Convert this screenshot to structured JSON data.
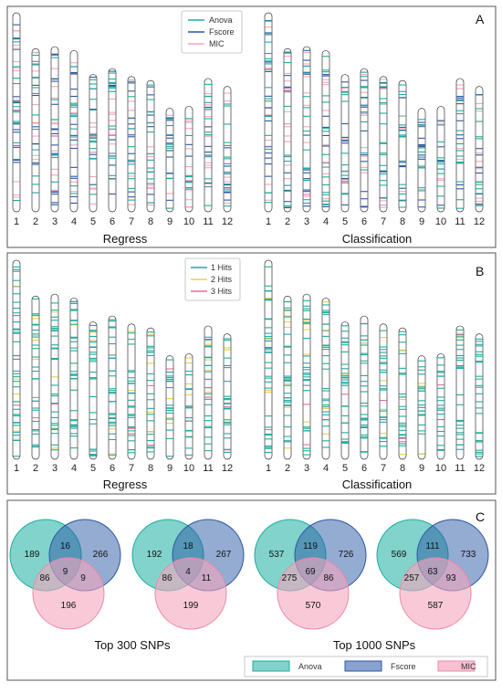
{
  "panel_a": {
    "letter": "A",
    "legend": [
      {
        "label": "Anova",
        "color": "#1aaea0"
      },
      {
        "label": "Fscore",
        "color": "#2a57a6"
      },
      {
        "label": "MIC",
        "color": "#f4a6bd"
      }
    ],
    "group_labels": [
      "Regress",
      "Classification"
    ],
    "chromosomes": [
      "1",
      "2",
      "3",
      "4",
      "5",
      "6",
      "7",
      "8",
      "9",
      "10",
      "11",
      "12"
    ]
  },
  "panel_b": {
    "letter": "B",
    "legend": [
      {
        "label": "1 Hits",
        "color": "#1aaea0"
      },
      {
        "label": "2 Hits",
        "color": "#e8d04a"
      },
      {
        "label": "3 Hits",
        "color": "#ef6a96"
      }
    ],
    "group_labels": [
      "Regress",
      "Classification"
    ],
    "chromosomes": [
      "1",
      "2",
      "3",
      "4",
      "5",
      "6",
      "7",
      "8",
      "9",
      "10",
      "11",
      "12"
    ]
  },
  "panel_c": {
    "letter": "C",
    "captions": [
      "Top 300 SNPs",
      "Top 1000 SNPs"
    ],
    "legend": [
      {
        "label": "Anova",
        "color": "#1aaea0"
      },
      {
        "label": "Fscore",
        "color": "#2a57a6"
      },
      {
        "label": "MIC",
        "color": "#f4a6bd"
      }
    ],
    "venns": [
      {
        "anova_only": "189",
        "fscore_only": "266",
        "mic_only": "196",
        "anova_fscore": "16",
        "anova_mic": "86",
        "fscore_mic": "9",
        "all": "9"
      },
      {
        "anova_only": "192",
        "fscore_only": "267",
        "mic_only": "199",
        "anova_fscore": "18",
        "anova_mic": "86",
        "fscore_mic": "11",
        "all": "4"
      },
      {
        "anova_only": "537",
        "fscore_only": "726",
        "mic_only": "570",
        "anova_fscore": "119",
        "anova_mic": "275",
        "fscore_mic": "86",
        "all": "69"
      },
      {
        "anova_only": "569",
        "fscore_only": "733",
        "mic_only": "587",
        "anova_fscore": "111",
        "anova_mic": "257",
        "fscore_mic": "93",
        "all": "63"
      }
    ]
  }
}
